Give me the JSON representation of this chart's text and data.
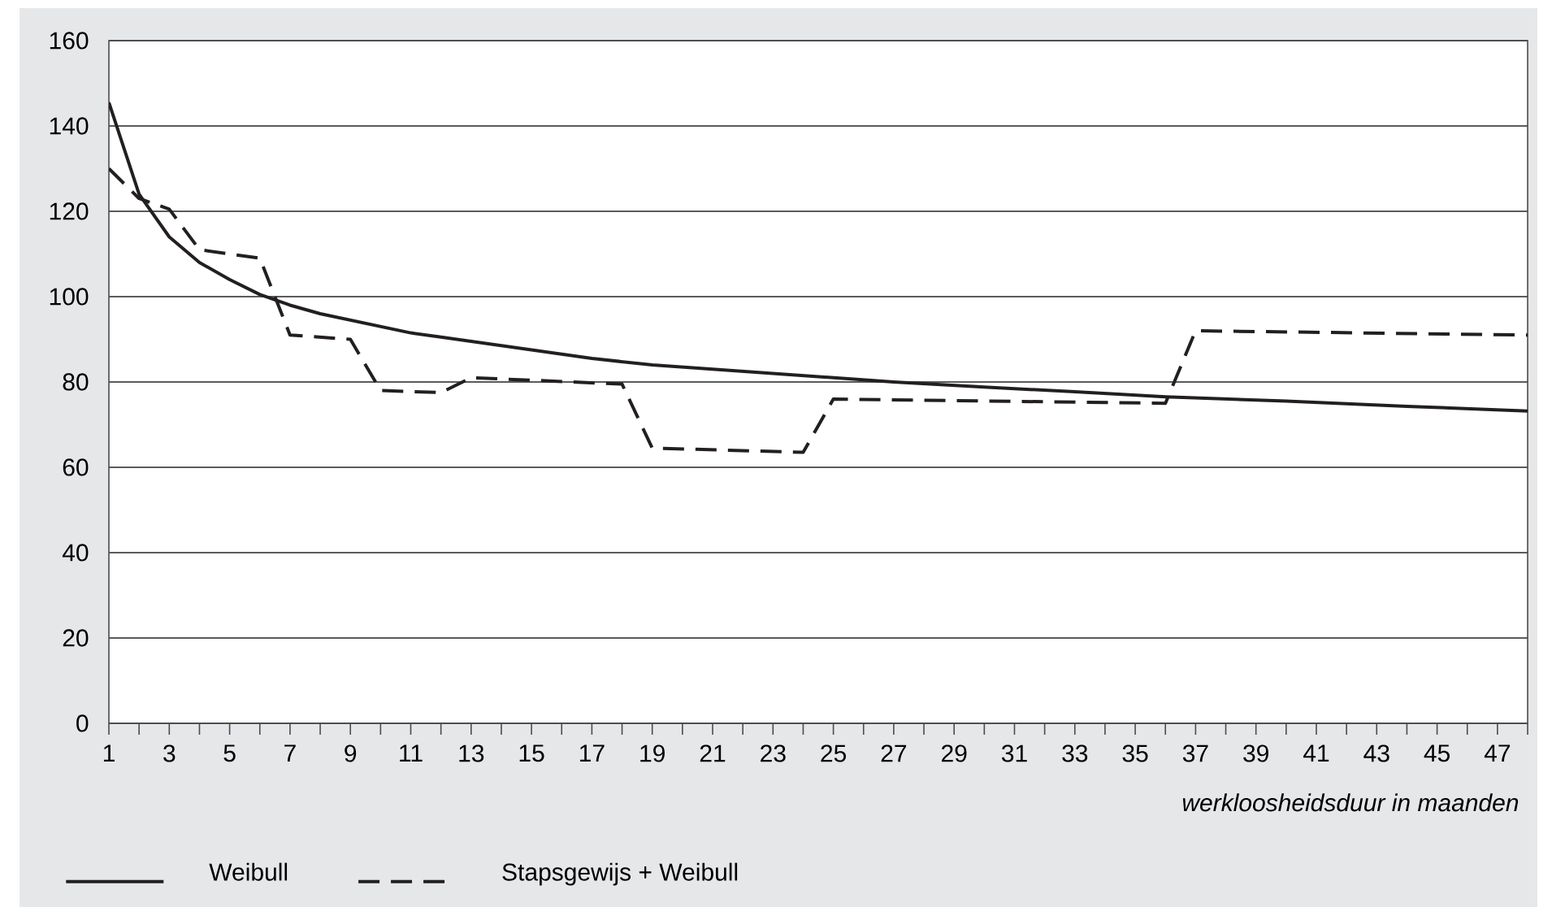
{
  "chart_data": {
    "type": "line",
    "xlabel": "werkloosheidsduur in maanden",
    "xlim": [
      1,
      48
    ],
    "xticks": [
      1,
      {
        "value": 2,
        "label": null
      },
      3,
      {
        "value": 4,
        "label": null
      },
      5,
      {
        "value": 6,
        "label": null
      },
      7,
      {
        "value": 8,
        "label": null
      },
      9,
      {
        "value": 10,
        "label": null
      },
      11,
      {
        "value": 12,
        "label": null
      },
      13,
      {
        "value": 14,
        "label": null
      },
      15,
      {
        "value": 16,
        "label": null
      },
      17,
      {
        "value": 18,
        "label": null
      },
      19,
      {
        "value": 20,
        "label": null
      },
      21,
      {
        "value": 22,
        "label": null
      },
      23,
      {
        "value": 24,
        "label": null
      },
      25,
      {
        "value": 26,
        "label": null
      },
      27,
      {
        "value": 28,
        "label": null
      },
      29,
      {
        "value": 30,
        "label": null
      },
      31,
      {
        "value": 32,
        "label": null
      },
      33,
      {
        "value": 34,
        "label": null
      },
      35,
      {
        "value": 36,
        "label": null
      },
      37,
      {
        "value": 38,
        "label": null
      },
      39,
      {
        "value": 40,
        "label": null
      },
      41,
      {
        "value": 42,
        "label": null
      },
      43,
      {
        "value": 44,
        "label": null
      },
      45,
      {
        "value": 46,
        "label": null
      },
      47,
      {
        "value": 48,
        "label": null
      }
    ],
    "ylim": [
      0,
      160
    ],
    "yticks": [
      0,
      20,
      40,
      60,
      80,
      100,
      120,
      140,
      160
    ],
    "grid": "y",
    "legend": "bottom",
    "marker": "none",
    "series": [
      {
        "name": "Weibull",
        "color": "#231f20",
        "line_style": "solid",
        "x": [
          1,
          2,
          3,
          4,
          5,
          6,
          7,
          8,
          9,
          10,
          11,
          12,
          13,
          15,
          17,
          19,
          21,
          23,
          25,
          27,
          30,
          33,
          36,
          40,
          44,
          48
        ],
        "values": [
          145.5,
          124,
          114,
          108,
          104,
          100.5,
          98,
          96,
          94.5,
          93,
          91.5,
          90.5,
          89.5,
          87.5,
          85.5,
          84,
          83,
          82,
          81,
          80,
          78.8,
          77.7,
          76.5,
          75.5,
          74.3,
          73.2
        ]
      },
      {
        "name": "Stapsgewijs + Weibull",
        "color": "#231f20",
        "line_style": "dashed",
        "x": [
          1,
          2,
          3,
          4,
          6,
          7,
          9,
          10,
          12,
          13,
          18,
          19,
          24,
          25,
          36,
          37,
          48
        ],
        "values": [
          130,
          123,
          120.5,
          111,
          109,
          91,
          90,
          78,
          77.5,
          81,
          79.5,
          64.5,
          63.5,
          76,
          75,
          92,
          91
        ]
      }
    ]
  }
}
